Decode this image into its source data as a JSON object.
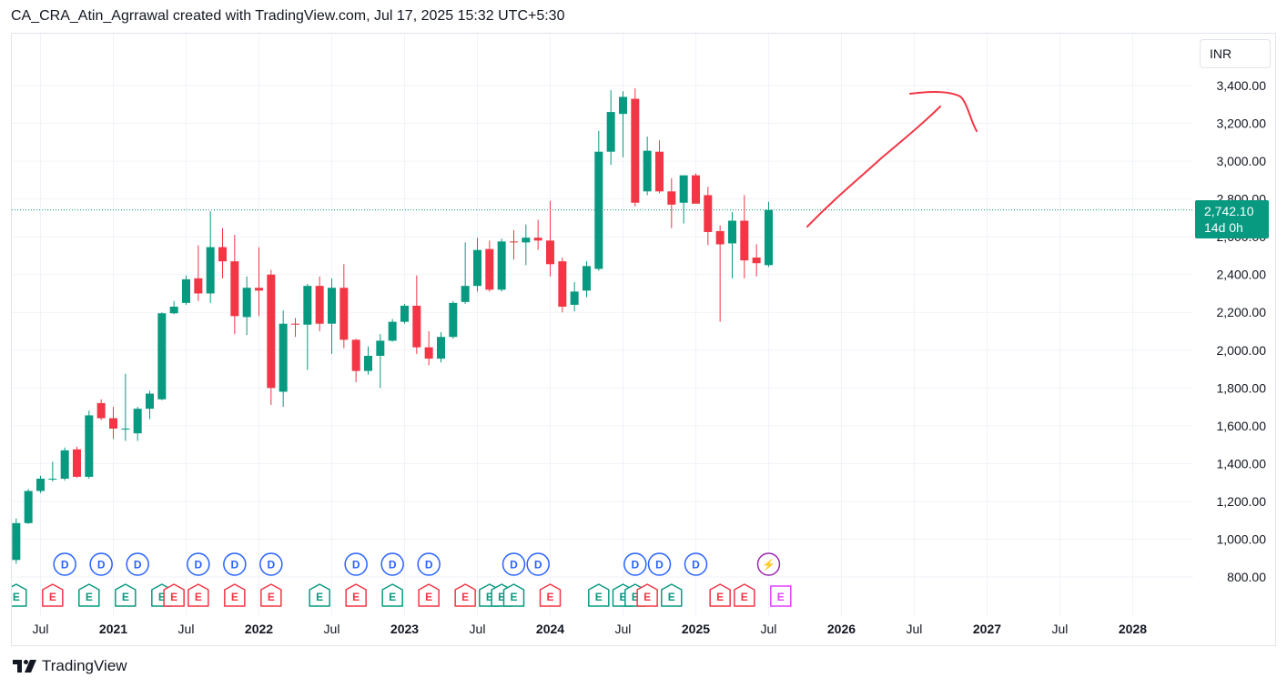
{
  "header": {
    "text": "CA_CRA_Atin_Agrrawal created with TradingView.com, Jul 17, 2025 15:32 UTC+5:30"
  },
  "currency": "INR",
  "price_tag": {
    "price": "2,742.10",
    "countdown": "14d 0h"
  },
  "footer": {
    "brand": "TradingView",
    "logo_icon": "tradingview-logo-icon"
  },
  "colors": {
    "up": "#089981",
    "down": "#f23645",
    "dividend": "#2962ff",
    "earnings_up": "#089981",
    "earnings_down": "#f23645",
    "split": "#9c27b0",
    "drawing": "#f23645"
  },
  "chart_data": {
    "type": "candlestick",
    "interval": "monthly",
    "ylim": [
      800,
      3400
    ],
    "y_ticks": [
      "800.00",
      "1,000.00",
      "1,200.00",
      "1,400.00",
      "1,600.00",
      "1,800.00",
      "2,000.00",
      "2,200.00",
      "2,400.00",
      "2,600.00",
      "2,800.00",
      "3,000.00",
      "3,200.00",
      "3,400.00"
    ],
    "x_ticks": [
      {
        "date": "2020-07",
        "label": "Jul",
        "bold": false
      },
      {
        "date": "2021-01",
        "label": "2021",
        "bold": true
      },
      {
        "date": "2021-07",
        "label": "Jul",
        "bold": false
      },
      {
        "date": "2022-01",
        "label": "2022",
        "bold": true
      },
      {
        "date": "2022-07",
        "label": "Jul",
        "bold": false
      },
      {
        "date": "2023-01",
        "label": "2023",
        "bold": true
      },
      {
        "date": "2023-07",
        "label": "Jul",
        "bold": false
      },
      {
        "date": "2024-01",
        "label": "2024",
        "bold": true
      },
      {
        "date": "2024-07",
        "label": "Jul",
        "bold": false
      },
      {
        "date": "2025-01",
        "label": "2025",
        "bold": true
      },
      {
        "date": "2025-07",
        "label": "Jul",
        "bold": false
      },
      {
        "date": "2026-01",
        "label": "2026",
        "bold": true
      },
      {
        "date": "2026-07",
        "label": "Jul",
        "bold": false
      },
      {
        "date": "2027-01",
        "label": "2027",
        "bold": true
      },
      {
        "date": "2027-07",
        "label": "Jul",
        "bold": false
      },
      {
        "date": "2028-01",
        "label": "2028",
        "bold": true
      }
    ],
    "last_price": 2742.1,
    "candles": [
      {
        "date": "2020-05",
        "o": 890,
        "h": 1110,
        "l": 870,
        "c": 1085
      },
      {
        "date": "2020-06",
        "o": 1085,
        "h": 1265,
        "l": 1080,
        "c": 1255
      },
      {
        "date": "2020-07",
        "o": 1255,
        "h": 1335,
        "l": 1245,
        "c": 1320
      },
      {
        "date": "2020-08",
        "o": 1320,
        "h": 1410,
        "l": 1305,
        "c": 1320
      },
      {
        "date": "2020-09",
        "o": 1320,
        "h": 1485,
        "l": 1310,
        "c": 1470
      },
      {
        "date": "2020-10",
        "o": 1475,
        "h": 1490,
        "l": 1325,
        "c": 1330
      },
      {
        "date": "2020-11",
        "o": 1330,
        "h": 1680,
        "l": 1320,
        "c": 1655
      },
      {
        "date": "2020-12",
        "o": 1720,
        "h": 1740,
        "l": 1630,
        "c": 1640
      },
      {
        "date": "2021-01",
        "o": 1640,
        "h": 1700,
        "l": 1530,
        "c": 1585
      },
      {
        "date": "2021-02",
        "o": 1580,
        "h": 1875,
        "l": 1520,
        "c": 1585
      },
      {
        "date": "2021-03",
        "o": 1560,
        "h": 1700,
        "l": 1520,
        "c": 1690
      },
      {
        "date": "2021-04",
        "o": 1690,
        "h": 1785,
        "l": 1635,
        "c": 1770
      },
      {
        "date": "2021-05",
        "o": 1740,
        "h": 2200,
        "l": 1735,
        "c": 2195
      },
      {
        "date": "2021-06",
        "o": 2195,
        "h": 2260,
        "l": 2190,
        "c": 2230
      },
      {
        "date": "2021-07",
        "o": 2250,
        "h": 2395,
        "l": 2240,
        "c": 2375
      },
      {
        "date": "2021-08",
        "o": 2380,
        "h": 2555,
        "l": 2260,
        "c": 2300
      },
      {
        "date": "2021-09",
        "o": 2300,
        "h": 2735,
        "l": 2250,
        "c": 2545
      },
      {
        "date": "2021-10",
        "o": 2545,
        "h": 2645,
        "l": 2380,
        "c": 2470
      },
      {
        "date": "2021-11",
        "o": 2470,
        "h": 2610,
        "l": 2085,
        "c": 2180
      },
      {
        "date": "2021-12",
        "o": 2175,
        "h": 2390,
        "l": 2080,
        "c": 2330
      },
      {
        "date": "2022-01",
        "o": 2330,
        "h": 2545,
        "l": 2180,
        "c": 2315
      },
      {
        "date": "2022-02",
        "o": 2400,
        "h": 2425,
        "l": 1710,
        "c": 1800
      },
      {
        "date": "2022-03",
        "o": 1780,
        "h": 2210,
        "l": 1700,
        "c": 2140
      },
      {
        "date": "2022-04",
        "o": 2140,
        "h": 2170,
        "l": 2070,
        "c": 2135
      },
      {
        "date": "2022-05",
        "o": 2135,
        "h": 2350,
        "l": 1895,
        "c": 2340
      },
      {
        "date": "2022-06",
        "o": 2340,
        "h": 2390,
        "l": 2100,
        "c": 2140
      },
      {
        "date": "2022-07",
        "o": 2140,
        "h": 2380,
        "l": 1980,
        "c": 2330
      },
      {
        "date": "2022-08",
        "o": 2330,
        "h": 2455,
        "l": 2010,
        "c": 2055
      },
      {
        "date": "2022-09",
        "o": 2055,
        "h": 2060,
        "l": 1830,
        "c": 1890
      },
      {
        "date": "2022-10",
        "o": 1890,
        "h": 2020,
        "l": 1870,
        "c": 1970
      },
      {
        "date": "2022-11",
        "o": 1970,
        "h": 2085,
        "l": 1800,
        "c": 2050
      },
      {
        "date": "2022-12",
        "o": 2050,
        "h": 2165,
        "l": 2045,
        "c": 2150
      },
      {
        "date": "2023-01",
        "o": 2150,
        "h": 2245,
        "l": 2140,
        "c": 2235
      },
      {
        "date": "2023-02",
        "o": 2235,
        "h": 2395,
        "l": 1980,
        "c": 2015
      },
      {
        "date": "2023-03",
        "o": 2015,
        "h": 2100,
        "l": 1920,
        "c": 1955
      },
      {
        "date": "2023-04",
        "o": 1955,
        "h": 2095,
        "l": 1935,
        "c": 2070
      },
      {
        "date": "2023-05",
        "o": 2070,
        "h": 2260,
        "l": 2060,
        "c": 2250
      },
      {
        "date": "2023-06",
        "o": 2255,
        "h": 2570,
        "l": 2245,
        "c": 2340
      },
      {
        "date": "2023-07",
        "o": 2340,
        "h": 2595,
        "l": 2310,
        "c": 2530
      },
      {
        "date": "2023-08",
        "o": 2535,
        "h": 2580,
        "l": 2310,
        "c": 2320
      },
      {
        "date": "2023-09",
        "o": 2320,
        "h": 2590,
        "l": 2310,
        "c": 2575
      },
      {
        "date": "2023-10",
        "o": 2575,
        "h": 2635,
        "l": 2480,
        "c": 2570
      },
      {
        "date": "2023-11",
        "o": 2570,
        "h": 2665,
        "l": 2450,
        "c": 2595
      },
      {
        "date": "2023-12",
        "o": 2595,
        "h": 2690,
        "l": 2530,
        "c": 2580
      },
      {
        "date": "2024-01",
        "o": 2580,
        "h": 2790,
        "l": 2390,
        "c": 2455
      },
      {
        "date": "2024-02",
        "o": 2470,
        "h": 2490,
        "l": 2200,
        "c": 2230
      },
      {
        "date": "2024-03",
        "o": 2240,
        "h": 2360,
        "l": 2205,
        "c": 2310
      },
      {
        "date": "2024-04",
        "o": 2315,
        "h": 2470,
        "l": 2280,
        "c": 2445
      },
      {
        "date": "2024-05",
        "o": 2430,
        "h": 3160,
        "l": 2420,
        "c": 3050
      },
      {
        "date": "2024-06",
        "o": 3050,
        "h": 3375,
        "l": 2980,
        "c": 3260
      },
      {
        "date": "2024-07",
        "o": 3250,
        "h": 3370,
        "l": 3020,
        "c": 3340
      },
      {
        "date": "2024-08",
        "o": 3330,
        "h": 3385,
        "l": 2760,
        "c": 2780
      },
      {
        "date": "2024-09",
        "o": 2840,
        "h": 3130,
        "l": 2820,
        "c": 3055
      },
      {
        "date": "2024-10",
        "o": 3050,
        "h": 3110,
        "l": 2830,
        "c": 2840
      },
      {
        "date": "2024-11",
        "o": 2840,
        "h": 2910,
        "l": 2645,
        "c": 2770
      },
      {
        "date": "2024-12",
        "o": 2780,
        "h": 2920,
        "l": 2670,
        "c": 2925
      },
      {
        "date": "2025-01",
        "o": 2925,
        "h": 2935,
        "l": 2780,
        "c": 2775
      },
      {
        "date": "2025-02",
        "o": 2820,
        "h": 2865,
        "l": 2555,
        "c": 2625
      },
      {
        "date": "2025-03",
        "o": 2630,
        "h": 2660,
        "l": 2150,
        "c": 2560
      },
      {
        "date": "2025-04",
        "o": 2565,
        "h": 2730,
        "l": 2380,
        "c": 2685
      },
      {
        "date": "2025-05",
        "o": 2685,
        "h": 2820,
        "l": 2380,
        "c": 2475
      },
      {
        "date": "2025-06",
        "o": 2490,
        "h": 2560,
        "l": 2390,
        "c": 2460
      },
      {
        "date": "2025-07",
        "o": 2450,
        "h": 2785,
        "l": 2440,
        "c": 2742.1
      }
    ],
    "events": [
      {
        "date": "2020-09",
        "row": "dividend",
        "kind": "D"
      },
      {
        "date": "2020-12",
        "row": "dividend",
        "kind": "D"
      },
      {
        "date": "2021-03",
        "row": "dividend",
        "kind": "D"
      },
      {
        "date": "2021-08",
        "row": "dividend",
        "kind": "D"
      },
      {
        "date": "2021-11",
        "row": "dividend",
        "kind": "D"
      },
      {
        "date": "2022-02",
        "row": "dividend",
        "kind": "D"
      },
      {
        "date": "2022-09",
        "row": "dividend",
        "kind": "D"
      },
      {
        "date": "2022-12",
        "row": "dividend",
        "kind": "D"
      },
      {
        "date": "2023-03",
        "row": "dividend",
        "kind": "D"
      },
      {
        "date": "2023-10",
        "row": "dividend",
        "kind": "D"
      },
      {
        "date": "2023-12",
        "row": "dividend",
        "kind": "D"
      },
      {
        "date": "2024-08",
        "row": "dividend",
        "kind": "D"
      },
      {
        "date": "2024-10",
        "row": "dividend",
        "kind": "D"
      },
      {
        "date": "2025-01",
        "row": "dividend",
        "kind": "D"
      },
      {
        "date": "2025-07",
        "row": "split",
        "kind": "⚡"
      },
      {
        "date": "2020-05",
        "row": "earnings",
        "kind": "E",
        "tone": "up"
      },
      {
        "date": "2020-08",
        "row": "earnings",
        "kind": "E",
        "tone": "down"
      },
      {
        "date": "2020-11",
        "row": "earnings",
        "kind": "E",
        "tone": "up"
      },
      {
        "date": "2021-02",
        "row": "earnings",
        "kind": "E",
        "tone": "up"
      },
      {
        "date": "2021-05",
        "row": "earnings",
        "kind": "E",
        "tone": "up"
      },
      {
        "date": "2021-06",
        "row": "earnings",
        "kind": "E",
        "tone": "down"
      },
      {
        "date": "2021-08",
        "row": "earnings",
        "kind": "E",
        "tone": "down"
      },
      {
        "date": "2021-11",
        "row": "earnings",
        "kind": "E",
        "tone": "down"
      },
      {
        "date": "2022-02",
        "row": "earnings",
        "kind": "E",
        "tone": "down"
      },
      {
        "date": "2022-06",
        "row": "earnings",
        "kind": "E",
        "tone": "up"
      },
      {
        "date": "2022-09",
        "row": "earnings",
        "kind": "E",
        "tone": "down"
      },
      {
        "date": "2022-12",
        "row": "earnings",
        "kind": "E",
        "tone": "up"
      },
      {
        "date": "2023-03",
        "row": "earnings",
        "kind": "E",
        "tone": "down"
      },
      {
        "date": "2023-06",
        "row": "earnings",
        "kind": "E",
        "tone": "down"
      },
      {
        "date": "2023-08",
        "row": "earnings",
        "kind": "E",
        "tone": "up"
      },
      {
        "date": "2023-09",
        "row": "earnings",
        "kind": "E",
        "tone": "up"
      },
      {
        "date": "2023-10",
        "row": "earnings",
        "kind": "E",
        "tone": "up"
      },
      {
        "date": "2024-01",
        "row": "earnings",
        "kind": "E",
        "tone": "down"
      },
      {
        "date": "2024-05",
        "row": "earnings",
        "kind": "E",
        "tone": "up"
      },
      {
        "date": "2024-07",
        "row": "earnings",
        "kind": "E",
        "tone": "up"
      },
      {
        "date": "2024-08",
        "row": "earnings",
        "kind": "E",
        "tone": "up"
      },
      {
        "date": "2024-09",
        "row": "earnings",
        "kind": "E",
        "tone": "down"
      },
      {
        "date": "2024-11",
        "row": "earnings",
        "kind": "E",
        "tone": "up"
      },
      {
        "date": "2025-03",
        "row": "earnings",
        "kind": "E",
        "tone": "down"
      },
      {
        "date": "2025-05",
        "row": "earnings",
        "kind": "E",
        "tone": "down"
      },
      {
        "date": "2025-08",
        "row": "earnings",
        "kind": "E",
        "tone": "upcoming"
      }
    ]
  }
}
